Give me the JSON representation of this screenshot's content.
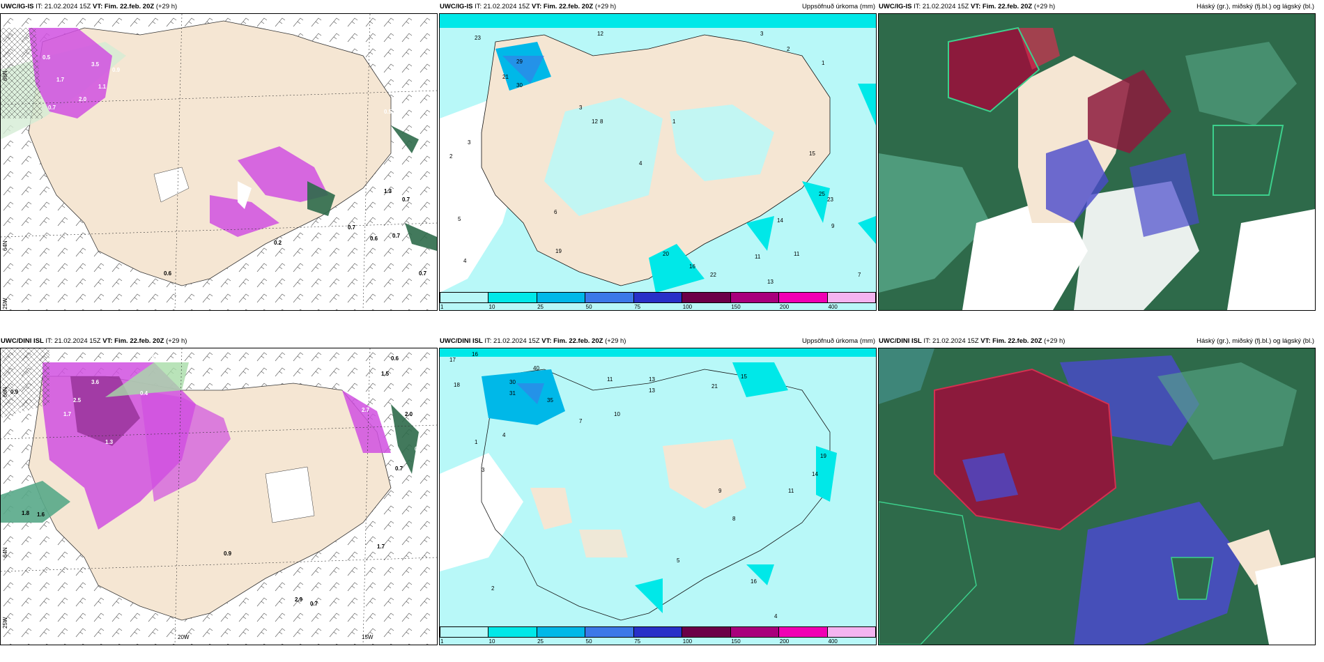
{
  "panels": [
    {
      "model": "UWC/IG-IS",
      "rest": " IT: 21.02.2024 15Z ",
      "vt_label": "VT:",
      "vt": " Fim. 22.feb. 20Z",
      "step": " (+29 h)",
      "right": ""
    },
    {
      "model": "UWC/IG-IS",
      "rest": " IT: 21.02.2024 15Z ",
      "vt_label": "VT:",
      "vt": " Fim. 22.feb. 20Z",
      "step": " (+29 h)",
      "right": "Uppsöfnuð úrkoma (mm)"
    },
    {
      "model": "UWC/IG-IS",
      "rest": " IT: 21.02.2024 15Z ",
      "vt_label": "VT:",
      "vt": " Fim. 22.feb. 20Z",
      "step": " (+29 h)",
      "right": "Háský (gr.), miðský (fj.bl.) og lágský (bl.)"
    },
    {
      "model": "UWC/DINI ISL",
      "rest": " IT: 21.02.2024 15Z ",
      "vt_label": "VT:",
      "vt": " Fim. 22.feb. 20Z",
      "step": " (+29 h)",
      "right": ""
    },
    {
      "model": "UWC/DINI ISL",
      "rest": " IT: 21.02.2024 15Z ",
      "vt_label": "VT:",
      "vt": " Fim. 22.feb. 20Z",
      "step": " (+29 h)",
      "right": "Uppsöfnuð úrkoma (mm)"
    },
    {
      "model": "UWC/DINI ISL",
      "rest": " IT: 21.02.2024 15Z ",
      "vt_label": "VT:",
      "vt": " Fim. 22.feb. 20Z",
      "step": " (+29 h)",
      "right": "Háský (gr.), miðský (fj.bl.) og lágský (bl.)"
    }
  ],
  "axis_labels": {
    "lon_20w": "20W",
    "lon_15w": "15W",
    "lat_66n": "66N",
    "lat_64n": "64N",
    "lon_25w": "25W"
  },
  "legend": {
    "ticks": [
      "1",
      "10",
      "25",
      "50",
      "75",
      "100",
      "150",
      "200",
      "400"
    ],
    "colors": [
      "#b8f8f8",
      "#00e8e8",
      "#00b8e8",
      "#3c78e8",
      "#2830c8",
      "#6c0048",
      "#a8007c",
      "#f000b4",
      "#f4b4f0"
    ]
  },
  "colors": {
    "land": "#f5e6d3",
    "precip_light": "#b8f8f8",
    "precip_mid": "#00e8e8",
    "magenta": "#d050e0",
    "green": "#a8dca8",
    "dark_green": "#2e6a4a",
    "cloud_red": "#8c1a3c",
    "cloud_blue": "#4a4acc"
  },
  "p1_labels": {
    "a": [
      "0.5",
      "2.0",
      "3.5",
      "0.9",
      "1.7",
      "0.7",
      "1.1",
      "0.5"
    ],
    "b": [
      "1.3",
      "0.7",
      "0.7",
      "0.6",
      "0.7",
      "0.6",
      "0.7",
      "0.2"
    ]
  },
  "p2_labels": {
    "a": [
      "23",
      "12",
      "2",
      "29",
      "30",
      "21",
      "4",
      "3",
      "5",
      "3",
      "2",
      "1",
      "1"
    ],
    "b": [
      "3",
      "4",
      "6",
      "8",
      "11",
      "12",
      "19",
      "20",
      "16",
      "25",
      "22",
      "23",
      "15",
      "14",
      "13",
      "11",
      "7",
      "9"
    ]
  },
  "p4_labels": {
    "a": [
      "0.9",
      "0.3",
      "1.8",
      "1.6",
      "2.5",
      "3.6",
      "1.7",
      "1.3",
      "0.4",
      "0.6"
    ],
    "b": [
      "2.0",
      "0.6",
      "1.5",
      "0.7",
      "0.9",
      "2.7",
      "0.4",
      "2.9",
      "0.7",
      "1.7"
    ]
  },
  "p5_labels": {
    "a": [
      "17",
      "16",
      "18",
      "30",
      "31",
      "35",
      "40",
      "11",
      "13",
      "4",
      "3",
      "1",
      "2"
    ],
    "b": [
      "21",
      "19",
      "14",
      "15",
      "13",
      "10",
      "9",
      "8",
      "7",
      "16",
      "11",
      "5",
      "4"
    ]
  }
}
